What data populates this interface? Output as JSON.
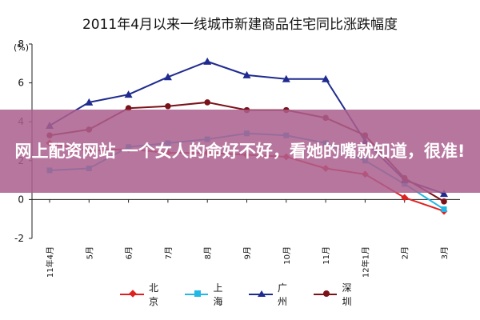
{
  "chart_data": {
    "type": "line",
    "title": "2011年4月以来一线城市新建商品住宅同比涨跌幅度",
    "unit_label": "(%)",
    "categories": [
      "11年4月",
      "5月",
      "6月",
      "7月",
      "8月",
      "9月",
      "10月",
      "11月",
      "12年1月",
      "2月",
      "3月"
    ],
    "ylim": [
      -2,
      8
    ],
    "yticks": [
      "-2",
      "0",
      "2",
      "4",
      "6",
      "8"
    ],
    "grid": false,
    "legend_position": "bottom",
    "series": [
      {
        "name": "北京",
        "color": "#e02020",
        "marker": "diamond",
        "values": [
          2.9,
          2.5,
          2.6,
          2.4,
          2.4,
          2.3,
          2.2,
          1.6,
          1.3,
          0.1,
          -0.6
        ]
      },
      {
        "name": "上海",
        "color": "#22b7e5",
        "marker": "square",
        "values": [
          1.5,
          1.6,
          2.7,
          2.9,
          3.1,
          3.4,
          3.3,
          2.9,
          2.0,
          0.8,
          -0.5
        ]
      },
      {
        "name": "广州",
        "color": "#1f2b8f",
        "marker": "triangle",
        "values": [
          3.8,
          5.0,
          5.4,
          6.3,
          7.1,
          6.4,
          6.2,
          6.2,
          3.0,
          1.0,
          0.3
        ]
      },
      {
        "name": "深圳",
        "color": "#7a1219",
        "marker": "circle",
        "values": [
          3.3,
          3.6,
          4.7,
          4.8,
          5.0,
          4.6,
          4.6,
          4.2,
          3.3,
          1.1,
          -0.1
        ]
      }
    ]
  },
  "overlay": {
    "banner_text": "网上配资网站 一个女人的命好不好，看她的嘴就知道，很准!"
  }
}
